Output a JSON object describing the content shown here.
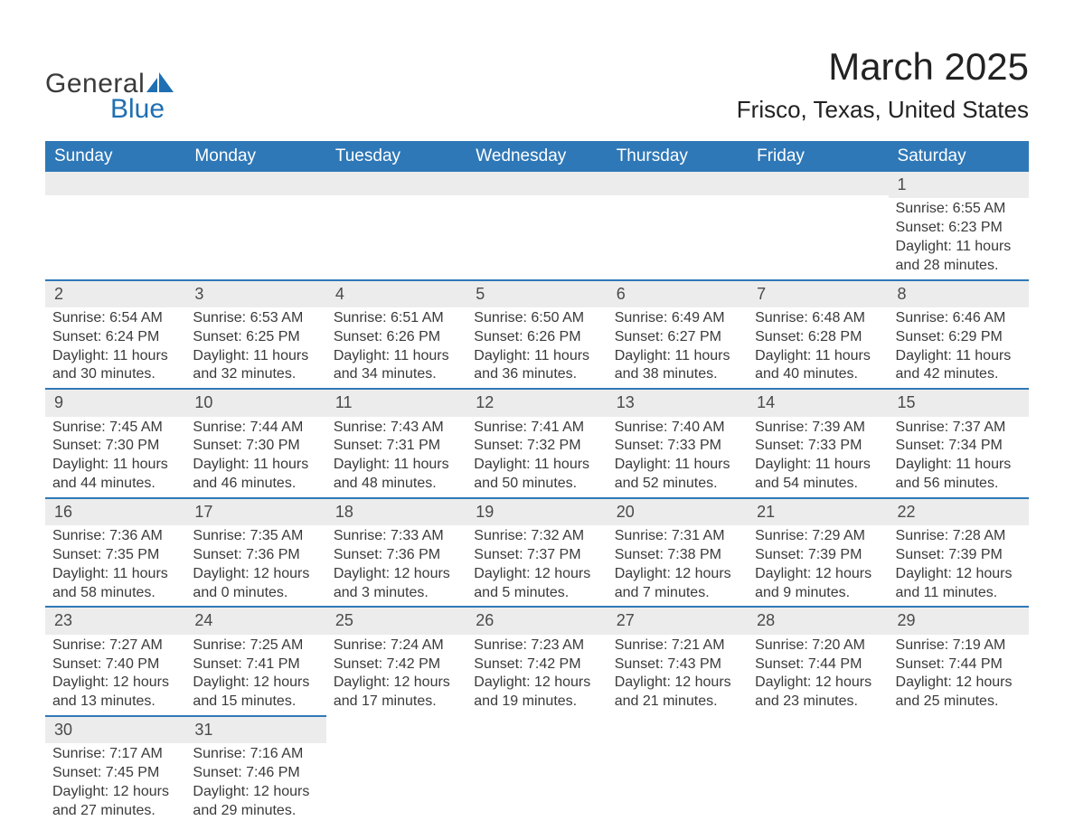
{
  "brand": {
    "line1": "General",
    "line2": "Blue",
    "accent_color": "#1f6fb2"
  },
  "title": {
    "month": "March 2025",
    "location": "Frisco, Texas, United States"
  },
  "colors": {
    "header_bg": "#2f78b7",
    "header_text": "#ffffff",
    "daynum_bg": "#ececec",
    "row_divider": "#2f78b7",
    "body_text": "#3a3a3a",
    "page_bg": "#ffffff"
  },
  "typography": {
    "month_title_fontsize": 42,
    "location_fontsize": 26,
    "weekday_fontsize": 19,
    "daynum_fontsize": 18,
    "cell_fontsize": 16
  },
  "layout": {
    "columns": 7,
    "rows": 6,
    "cell_lines": 4
  },
  "weekdays": [
    "Sunday",
    "Monday",
    "Tuesday",
    "Wednesday",
    "Thursday",
    "Friday",
    "Saturday"
  ],
  "weeks": [
    [
      {
        "n": "",
        "sunrise": "",
        "sunset": "",
        "daylight1": "",
        "daylight2": ""
      },
      {
        "n": "",
        "sunrise": "",
        "sunset": "",
        "daylight1": "",
        "daylight2": ""
      },
      {
        "n": "",
        "sunrise": "",
        "sunset": "",
        "daylight1": "",
        "daylight2": ""
      },
      {
        "n": "",
        "sunrise": "",
        "sunset": "",
        "daylight1": "",
        "daylight2": ""
      },
      {
        "n": "",
        "sunrise": "",
        "sunset": "",
        "daylight1": "",
        "daylight2": ""
      },
      {
        "n": "",
        "sunrise": "",
        "sunset": "",
        "daylight1": "",
        "daylight2": ""
      },
      {
        "n": "1",
        "sunrise": "Sunrise: 6:55 AM",
        "sunset": "Sunset: 6:23 PM",
        "daylight1": "Daylight: 11 hours",
        "daylight2": "and 28 minutes."
      }
    ],
    [
      {
        "n": "2",
        "sunrise": "Sunrise: 6:54 AM",
        "sunset": "Sunset: 6:24 PM",
        "daylight1": "Daylight: 11 hours",
        "daylight2": "and 30 minutes."
      },
      {
        "n": "3",
        "sunrise": "Sunrise: 6:53 AM",
        "sunset": "Sunset: 6:25 PM",
        "daylight1": "Daylight: 11 hours",
        "daylight2": "and 32 minutes."
      },
      {
        "n": "4",
        "sunrise": "Sunrise: 6:51 AM",
        "sunset": "Sunset: 6:26 PM",
        "daylight1": "Daylight: 11 hours",
        "daylight2": "and 34 minutes."
      },
      {
        "n": "5",
        "sunrise": "Sunrise: 6:50 AM",
        "sunset": "Sunset: 6:26 PM",
        "daylight1": "Daylight: 11 hours",
        "daylight2": "and 36 minutes."
      },
      {
        "n": "6",
        "sunrise": "Sunrise: 6:49 AM",
        "sunset": "Sunset: 6:27 PM",
        "daylight1": "Daylight: 11 hours",
        "daylight2": "and 38 minutes."
      },
      {
        "n": "7",
        "sunrise": "Sunrise: 6:48 AM",
        "sunset": "Sunset: 6:28 PM",
        "daylight1": "Daylight: 11 hours",
        "daylight2": "and 40 minutes."
      },
      {
        "n": "8",
        "sunrise": "Sunrise: 6:46 AM",
        "sunset": "Sunset: 6:29 PM",
        "daylight1": "Daylight: 11 hours",
        "daylight2": "and 42 minutes."
      }
    ],
    [
      {
        "n": "9",
        "sunrise": "Sunrise: 7:45 AM",
        "sunset": "Sunset: 7:30 PM",
        "daylight1": "Daylight: 11 hours",
        "daylight2": "and 44 minutes."
      },
      {
        "n": "10",
        "sunrise": "Sunrise: 7:44 AM",
        "sunset": "Sunset: 7:30 PM",
        "daylight1": "Daylight: 11 hours",
        "daylight2": "and 46 minutes."
      },
      {
        "n": "11",
        "sunrise": "Sunrise: 7:43 AM",
        "sunset": "Sunset: 7:31 PM",
        "daylight1": "Daylight: 11 hours",
        "daylight2": "and 48 minutes."
      },
      {
        "n": "12",
        "sunrise": "Sunrise: 7:41 AM",
        "sunset": "Sunset: 7:32 PM",
        "daylight1": "Daylight: 11 hours",
        "daylight2": "and 50 minutes."
      },
      {
        "n": "13",
        "sunrise": "Sunrise: 7:40 AM",
        "sunset": "Sunset: 7:33 PM",
        "daylight1": "Daylight: 11 hours",
        "daylight2": "and 52 minutes."
      },
      {
        "n": "14",
        "sunrise": "Sunrise: 7:39 AM",
        "sunset": "Sunset: 7:33 PM",
        "daylight1": "Daylight: 11 hours",
        "daylight2": "and 54 minutes."
      },
      {
        "n": "15",
        "sunrise": "Sunrise: 7:37 AM",
        "sunset": "Sunset: 7:34 PM",
        "daylight1": "Daylight: 11 hours",
        "daylight2": "and 56 minutes."
      }
    ],
    [
      {
        "n": "16",
        "sunrise": "Sunrise: 7:36 AM",
        "sunset": "Sunset: 7:35 PM",
        "daylight1": "Daylight: 11 hours",
        "daylight2": "and 58 minutes."
      },
      {
        "n": "17",
        "sunrise": "Sunrise: 7:35 AM",
        "sunset": "Sunset: 7:36 PM",
        "daylight1": "Daylight: 12 hours",
        "daylight2": "and 0 minutes."
      },
      {
        "n": "18",
        "sunrise": "Sunrise: 7:33 AM",
        "sunset": "Sunset: 7:36 PM",
        "daylight1": "Daylight: 12 hours",
        "daylight2": "and 3 minutes."
      },
      {
        "n": "19",
        "sunrise": "Sunrise: 7:32 AM",
        "sunset": "Sunset: 7:37 PM",
        "daylight1": "Daylight: 12 hours",
        "daylight2": "and 5 minutes."
      },
      {
        "n": "20",
        "sunrise": "Sunrise: 7:31 AM",
        "sunset": "Sunset: 7:38 PM",
        "daylight1": "Daylight: 12 hours",
        "daylight2": "and 7 minutes."
      },
      {
        "n": "21",
        "sunrise": "Sunrise: 7:29 AM",
        "sunset": "Sunset: 7:39 PM",
        "daylight1": "Daylight: 12 hours",
        "daylight2": "and 9 minutes."
      },
      {
        "n": "22",
        "sunrise": "Sunrise: 7:28 AM",
        "sunset": "Sunset: 7:39 PM",
        "daylight1": "Daylight: 12 hours",
        "daylight2": "and 11 minutes."
      }
    ],
    [
      {
        "n": "23",
        "sunrise": "Sunrise: 7:27 AM",
        "sunset": "Sunset: 7:40 PM",
        "daylight1": "Daylight: 12 hours",
        "daylight2": "and 13 minutes."
      },
      {
        "n": "24",
        "sunrise": "Sunrise: 7:25 AM",
        "sunset": "Sunset: 7:41 PM",
        "daylight1": "Daylight: 12 hours",
        "daylight2": "and 15 minutes."
      },
      {
        "n": "25",
        "sunrise": "Sunrise: 7:24 AM",
        "sunset": "Sunset: 7:42 PM",
        "daylight1": "Daylight: 12 hours",
        "daylight2": "and 17 minutes."
      },
      {
        "n": "26",
        "sunrise": "Sunrise: 7:23 AM",
        "sunset": "Sunset: 7:42 PM",
        "daylight1": "Daylight: 12 hours",
        "daylight2": "and 19 minutes."
      },
      {
        "n": "27",
        "sunrise": "Sunrise: 7:21 AM",
        "sunset": "Sunset: 7:43 PM",
        "daylight1": "Daylight: 12 hours",
        "daylight2": "and 21 minutes."
      },
      {
        "n": "28",
        "sunrise": "Sunrise: 7:20 AM",
        "sunset": "Sunset: 7:44 PM",
        "daylight1": "Daylight: 12 hours",
        "daylight2": "and 23 minutes."
      },
      {
        "n": "29",
        "sunrise": "Sunrise: 7:19 AM",
        "sunset": "Sunset: 7:44 PM",
        "daylight1": "Daylight: 12 hours",
        "daylight2": "and 25 minutes."
      }
    ],
    [
      {
        "n": "30",
        "sunrise": "Sunrise: 7:17 AM",
        "sunset": "Sunset: 7:45 PM",
        "daylight1": "Daylight: 12 hours",
        "daylight2": "and 27 minutes."
      },
      {
        "n": "31",
        "sunrise": "Sunrise: 7:16 AM",
        "sunset": "Sunset: 7:46 PM",
        "daylight1": "Daylight: 12 hours",
        "daylight2": "and 29 minutes."
      },
      {
        "n": "",
        "sunrise": "",
        "sunset": "",
        "daylight1": "",
        "daylight2": ""
      },
      {
        "n": "",
        "sunrise": "",
        "sunset": "",
        "daylight1": "",
        "daylight2": ""
      },
      {
        "n": "",
        "sunrise": "",
        "sunset": "",
        "daylight1": "",
        "daylight2": ""
      },
      {
        "n": "",
        "sunrise": "",
        "sunset": "",
        "daylight1": "",
        "daylight2": ""
      },
      {
        "n": "",
        "sunrise": "",
        "sunset": "",
        "daylight1": "",
        "daylight2": ""
      }
    ]
  ]
}
